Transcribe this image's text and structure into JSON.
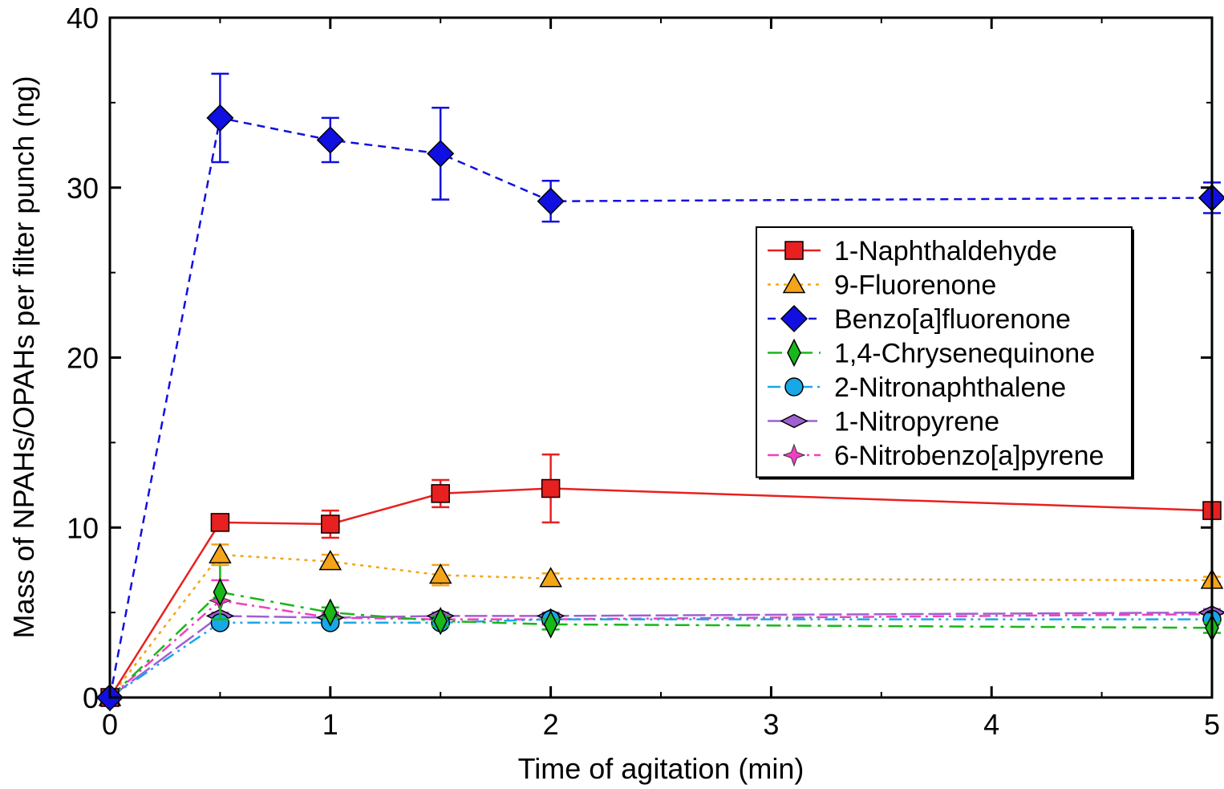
{
  "chart_data": {
    "type": "line",
    "title": "",
    "xlabel": "Time of agitation (min)",
    "ylabel": "Mass of NPAHs/OPAHs per filter punch (ng)",
    "xlim": [
      0,
      5
    ],
    "ylim": [
      0,
      40
    ],
    "x_ticks": [
      0,
      1,
      2,
      3,
      4,
      5
    ],
    "y_ticks": [
      0,
      10,
      20,
      30,
      40
    ],
    "grid": false,
    "legend_position": "right",
    "x": [
      0,
      0.5,
      1,
      1.5,
      2,
      5
    ],
    "series": [
      {
        "name": "1-Naphthaldehyde",
        "color": "#e8201f",
        "marker": "square",
        "dash": "solid",
        "values": [
          0,
          10.3,
          10.2,
          12.0,
          12.3,
          11.0
        ],
        "errors": [
          0,
          0,
          0.8,
          0.8,
          2.0,
          0
        ]
      },
      {
        "name": "9-Fluorenone",
        "color": "#f5a418",
        "marker": "triangle",
        "dash": "dot",
        "values": [
          0,
          8.4,
          8.0,
          7.2,
          7.0,
          6.9
        ],
        "errors": [
          0,
          0.6,
          0.4,
          0.6,
          0.3,
          0.2
        ]
      },
      {
        "name": "Benzo[a]fluorenone",
        "color": "#1010e0",
        "marker": "diamond",
        "dash": "dash",
        "values": [
          0,
          34.1,
          32.8,
          32.0,
          29.2,
          29.4
        ],
        "errors": [
          0,
          2.6,
          1.3,
          2.7,
          1.2,
          0.9
        ]
      },
      {
        "name": "1,4-Chrysenequinone",
        "color": "#18b818",
        "marker": "thin-diamond",
        "dash": "dashdot",
        "values": [
          0,
          6.2,
          5.0,
          4.5,
          4.3,
          4.1
        ],
        "errors": [
          0,
          1.6,
          0.3,
          0.3,
          0.3,
          0.3
        ]
      },
      {
        "name": "2-Nitronaphthalene",
        "color": "#18a8e8",
        "marker": "circle",
        "dash": "dashdotdot",
        "values": [
          0,
          4.4,
          4.4,
          4.4,
          4.6,
          4.6
        ],
        "errors": [
          0,
          0.2,
          0.2,
          0.2,
          0.2,
          0.2
        ]
      },
      {
        "name": "1-Nitropyrene",
        "color": "#a060d0",
        "marker": "flat-diamond",
        "dash": "longdash",
        "values": [
          0,
          4.8,
          4.7,
          4.8,
          4.8,
          5.0
        ],
        "errors": [
          0,
          0.2,
          0.2,
          0.2,
          0.2,
          0.2
        ]
      },
      {
        "name": "6-Nitrobenzo[a]pyrene",
        "color": "#f040c0",
        "marker": "star",
        "dash": "dashdot2",
        "values": [
          0,
          5.7,
          4.7,
          4.6,
          4.6,
          4.9
        ],
        "errors": [
          0,
          1.2,
          0.3,
          0.3,
          0.3,
          0.3
        ]
      }
    ]
  }
}
